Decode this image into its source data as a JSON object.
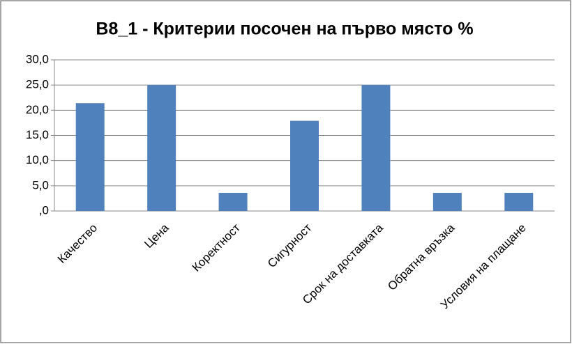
{
  "chart_data": {
    "type": "bar",
    "title": "B8_1 - Критерии посочен на първо място %",
    "categories": [
      "Качество",
      "Цена",
      "Коректност",
      "Сигурност",
      "Срок на доставката",
      "Обратна връзка",
      "Условия на плащане"
    ],
    "values": [
      21.4,
      25.0,
      3.6,
      17.9,
      25.0,
      3.6,
      3.6
    ],
    "color": "#4f81bd",
    "ylim": [
      0,
      30
    ],
    "yticks": [
      {
        "value": 0,
        "label": ",0"
      },
      {
        "value": 5,
        "label": "5,0"
      },
      {
        "value": 10,
        "label": "10,0"
      },
      {
        "value": 15,
        "label": "15,0"
      },
      {
        "value": 20,
        "label": "20,0"
      },
      {
        "value": 25,
        "label": "25,0"
      },
      {
        "value": 30,
        "label": "30,0"
      }
    ],
    "grid": true
  }
}
